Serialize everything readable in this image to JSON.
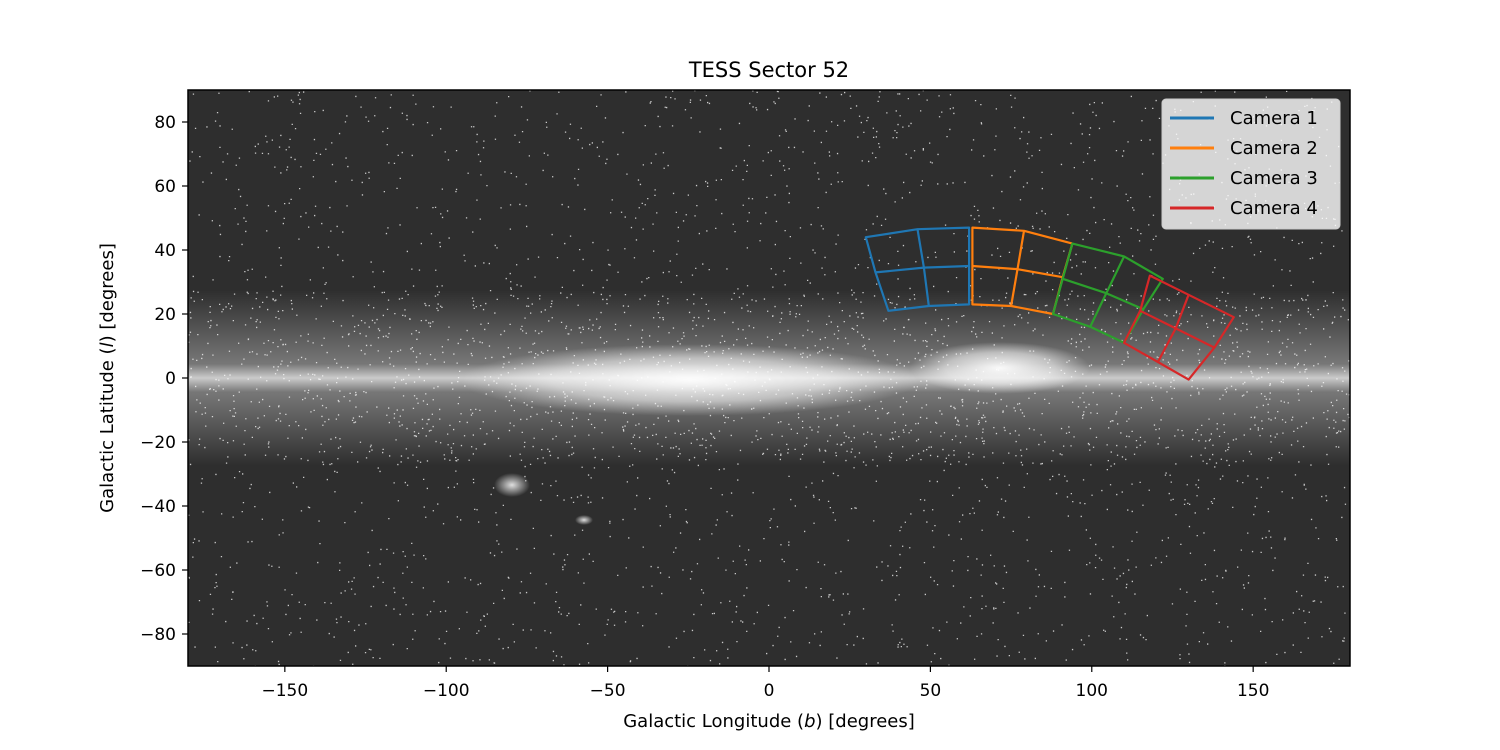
{
  "chart_data": {
    "type": "line",
    "title": "TESS Sector 52",
    "xlabel_parts": [
      "Galactic Longitude (",
      "b",
      ") [degrees]"
    ],
    "ylabel_parts": [
      "Galactic Latitude (",
      "l",
      ") [degrees]"
    ],
    "xlim": [
      -180,
      180
    ],
    "ylim": [
      -90,
      90
    ],
    "xticks": [
      -150,
      -100,
      -50,
      0,
      50,
      100,
      150
    ],
    "xtick_labels": [
      "−150",
      "−100",
      "−50",
      "0",
      "50",
      "100",
      "150"
    ],
    "yticks": [
      -80,
      -60,
      -40,
      -20,
      0,
      20,
      40,
      60,
      80
    ],
    "ytick_labels": [
      "−80",
      "−60",
      "−40",
      "−20",
      "0",
      "20",
      "40",
      "60",
      "80"
    ],
    "background": "all-sky grayscale star map with bright Milky Way band along latitude 0",
    "legend_position": "top-right",
    "series": [
      {
        "name": "Camera 1",
        "color": "#1f77b4",
        "ccd_grid": {
          "corners": {
            "tl": [
              30,
              44
            ],
            "tr": [
              62,
              47
            ],
            "bl": [
              37,
              21
            ],
            "br": [
              62,
              23
            ]
          },
          "mid_top": [
            46,
            46.5
          ],
          "mid_bottom": [
            49.5,
            22.5
          ],
          "mid_left": [
            33,
            33
          ],
          "mid_right": [
            62,
            35
          ],
          "center": [
            48,
            34.5
          ]
        }
      },
      {
        "name": "Camera 2",
        "color": "#ff7f0e",
        "ccd_grid": {
          "corners": {
            "tl": [
              63,
              47
            ],
            "tr": [
              94,
              42
            ],
            "bl": [
              63,
              23
            ],
            "br": [
              88,
              20
            ]
          },
          "mid_top": [
            79,
            46
          ],
          "mid_bottom": [
            75,
            22.5
          ],
          "mid_left": [
            63,
            35
          ],
          "mid_right": [
            91,
            31.5
          ],
          "center": [
            77,
            34
          ]
        }
      },
      {
        "name": "Camera 3",
        "color": "#2ca02c",
        "ccd_grid": {
          "corners": {
            "tl": [
              94,
              42
            ],
            "tr": [
              122,
              31
            ],
            "bl": [
              88,
              20
            ],
            "br": [
              110,
              11
            ]
          },
          "mid_top": [
            110,
            38
          ],
          "mid_bottom": [
            99.5,
            16
          ],
          "mid_left": [
            91,
            31
          ],
          "mid_right": [
            116,
            21.5
          ],
          "center": [
            104.5,
            26.5
          ]
        }
      },
      {
        "name": "Camera 4",
        "color": "#d62728",
        "ccd_grid": {
          "corners": {
            "tl": [
              118,
              32
            ],
            "tr": [
              144,
              19
            ],
            "bl": [
              110,
              11
            ],
            "br": [
              130,
              -0.5
            ]
          },
          "mid_top": [
            130,
            26
          ],
          "mid_bottom": [
            120.5,
            5
          ],
          "mid_left": [
            115,
            21
          ],
          "mid_right": [
            138,
            9.5
          ],
          "center": [
            126,
            15.5
          ]
        }
      }
    ]
  }
}
